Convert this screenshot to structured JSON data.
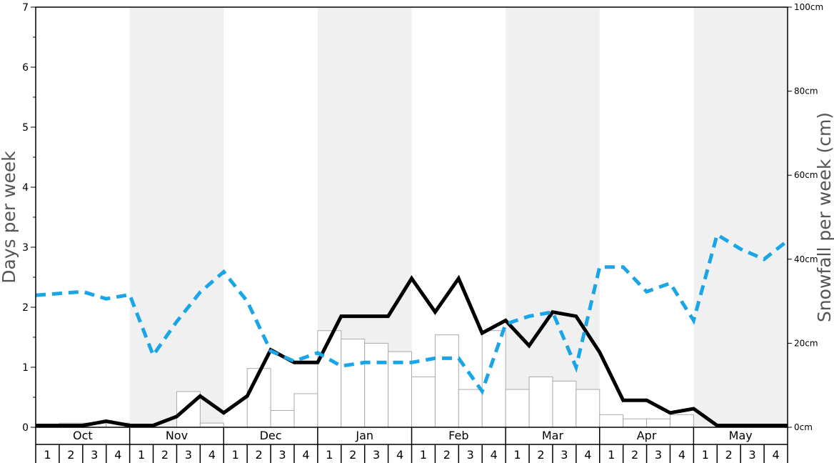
{
  "chart_data": {
    "type": "bar",
    "title": "",
    "left_axis": {
      "label": "Days per week",
      "ylim": [
        0,
        7
      ],
      "ticks": [
        "0",
        "1",
        "2",
        "3",
        "4",
        "5",
        "6",
        "7"
      ]
    },
    "right_axis": {
      "label": "Snowfall per week (cm)",
      "ylim": [
        0,
        100
      ],
      "ticks": [
        "0cm",
        "20cm",
        "40cm",
        "60cm",
        "80cm",
        "100cm"
      ]
    },
    "months": [
      "Oct",
      "Nov",
      "Dec",
      "Jan",
      "Feb",
      "Mar",
      "Apr",
      "May"
    ],
    "week_labels": [
      "1",
      "2",
      "3",
      "4"
    ],
    "bands": {
      "shaded_months": [
        "Nov",
        "Jan",
        "Mar",
        "May"
      ],
      "shade_color": "#f0f0f0"
    },
    "series": [
      {
        "style": "bars",
        "axis": "right",
        "color": "#ffffff",
        "stroke": "#aaaaaa",
        "values": [
          0,
          1,
          1,
          1,
          0,
          0,
          8.5,
          1,
          0,
          14,
          4,
          8,
          23,
          21,
          20,
          18,
          12,
          22,
          9,
          23,
          9,
          12,
          11,
          9,
          3,
          2,
          2,
          3,
          0,
          0,
          0,
          0
        ]
      },
      {
        "style": "solid-line",
        "axis": "left",
        "color": "#000000",
        "values": [
          0.03,
          0.03,
          0.03,
          0.1,
          0.03,
          0.03,
          0.18,
          0.52,
          0.24,
          0.52,
          1.29,
          1.08,
          1.08,
          1.85,
          1.85,
          1.85,
          2.48,
          1.92,
          2.48,
          1.57,
          1.78,
          1.36,
          1.92,
          1.85,
          1.25,
          0.45,
          0.45,
          0.24,
          0.31,
          0.03,
          0.03,
          0.03,
          0.03
        ]
      },
      {
        "style": "dashed-line",
        "axis": "left",
        "color": "#1aa6e6",
        "values": [
          2.2,
          2.23,
          2.26,
          2.14,
          2.21,
          1.2,
          1.76,
          2.25,
          2.59,
          2.1,
          1.27,
          1.1,
          1.24,
          1.02,
          1.08,
          1.08,
          1.08,
          1.15,
          1.15,
          0.6,
          1.72,
          1.85,
          1.92,
          1.0,
          2.67,
          2.67,
          2.26,
          2.4,
          1.78,
          3.21,
          2.97,
          2.8,
          3.11
        ]
      }
    ]
  }
}
